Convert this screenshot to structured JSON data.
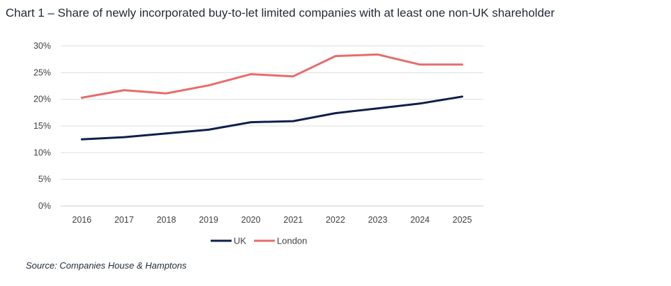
{
  "chart_data": {
    "type": "line",
    "title": "Chart 1 – Share of newly incorporated buy-to-let limited companies with at least one non-UK shareholder",
    "categories": [
      "2016",
      "2017",
      "2018",
      "2019",
      "2020",
      "2021",
      "2022",
      "2023",
      "2024",
      "2025"
    ],
    "series": [
      {
        "name": "UK",
        "color": "#0f1f4b",
        "values": [
          12.5,
          12.9,
          13.6,
          14.3,
          15.7,
          15.9,
          17.4,
          18.3,
          19.2,
          20.5
        ]
      },
      {
        "name": "London",
        "color": "#e86b6b",
        "values": [
          20.3,
          21.7,
          21.1,
          22.6,
          24.7,
          24.3,
          28.1,
          28.4,
          26.5,
          26.5
        ]
      }
    ],
    "ylim": [
      0,
      30
    ],
    "yticks": [
      0,
      5,
      10,
      15,
      20,
      25,
      30
    ],
    "ytick_labels": [
      "0%",
      "5%",
      "10%",
      "15%",
      "20%",
      "25%",
      "30%"
    ],
    "xlabel": "",
    "ylabel": "",
    "grid": true,
    "legend_position": "bottom"
  },
  "source_note": "Source: Companies House & Hamptons"
}
